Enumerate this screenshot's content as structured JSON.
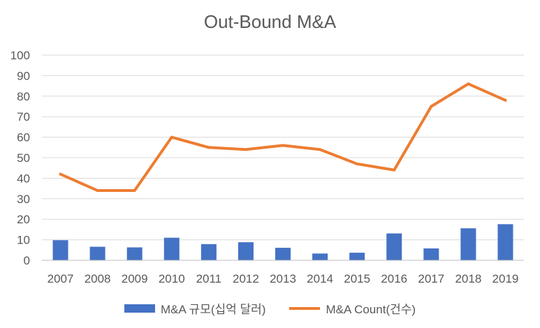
{
  "chart_data": {
    "type": "bar+line",
    "title": "Out-Bound M&A",
    "categories": [
      "2007",
      "2008",
      "2009",
      "2010",
      "2011",
      "2012",
      "2013",
      "2014",
      "2015",
      "2016",
      "2017",
      "2018",
      "2019"
    ],
    "series": [
      {
        "name": "M&A 규모(십억 달러)",
        "type": "bar",
        "color": "#4472C4",
        "values": [
          9.8,
          6.6,
          6.3,
          11.0,
          7.9,
          8.8,
          6.1,
          3.3,
          3.7,
          13.1,
          5.8,
          15.6,
          17.6
        ]
      },
      {
        "name": "M&A Count(건수)",
        "type": "line",
        "color": "#ED7D31",
        "values": [
          42,
          34,
          34,
          60,
          55,
          54,
          56,
          54,
          47,
          44,
          75,
          86,
          78
        ]
      }
    ],
    "ylim": [
      0,
      100
    ],
    "yticks": [
      0,
      10,
      20,
      30,
      40,
      50,
      60,
      70,
      80,
      90,
      100
    ],
    "xlabel": "",
    "ylabel": "",
    "grid": true,
    "legend_position": "bottom"
  }
}
